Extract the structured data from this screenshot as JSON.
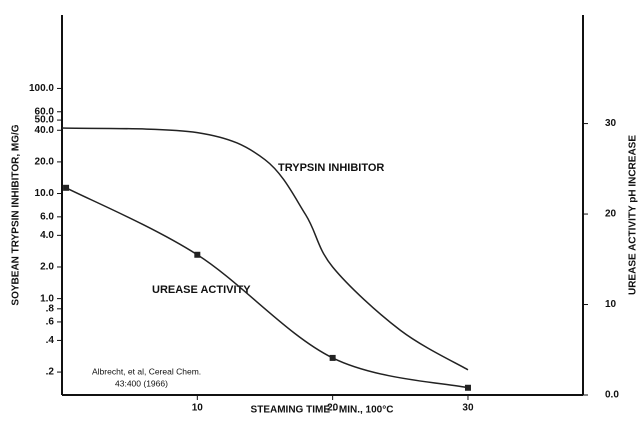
{
  "chart_data": {
    "type": "line",
    "left_axis_label": "SOYBEAN TRYPSIN INHIBITOR, MG/G",
    "right_axis_label": "UREASE ACTIVITY pH INCREASE",
    "x_axis_label": "STEAMING TIME - MIN., 100°C",
    "annotations": [
      "TRYPSIN INHIBITOR",
      "UREASE ACTIVITY",
      "Albrecht, et al, Cereal Chem.",
      "43:400 (1966)"
    ],
    "xlim": [
      0,
      38.5
    ],
    "xticks": [
      10,
      20,
      30
    ],
    "ylog": true,
    "ylim": [
      0.121,
      500
    ],
    "yticks": [
      {
        "value": 100,
        "label": "100.0"
      },
      {
        "value": 60,
        "label": "60.0"
      },
      {
        "value": 50,
        "label": "50.0"
      },
      {
        "value": 40,
        "label": "40.0"
      },
      {
        "value": 20,
        "label": "20.0"
      },
      {
        "value": 10,
        "label": "10.0"
      },
      {
        "value": 6,
        "label": "6.0"
      },
      {
        "value": 4,
        "label": "4.0"
      },
      {
        "value": 2,
        "label": "2.0"
      },
      {
        "value": 1,
        "label": "1.0"
      },
      {
        "value": 0.8,
        "label": ".8"
      },
      {
        "value": 0.6,
        "label": ".6"
      },
      {
        "value": 0.4,
        "label": ".4"
      },
      {
        "value": 0.2,
        "label": ".2"
      }
    ],
    "y2lim": [
      0,
      42
    ],
    "y2ticks": [
      {
        "value": 0,
        "label": "0.0"
      },
      10,
      20,
      30
    ],
    "series": [
      {
        "name": "TRYPSIN INHIBITOR",
        "color": "#222222",
        "x": [
          0,
          10,
          15,
          18,
          20,
          25,
          30
        ],
        "values": [
          42,
          38,
          21,
          6.3,
          2.0,
          0.5,
          0.21
        ]
      },
      {
        "name": "UREASE ACTIVITY",
        "color": "#222222",
        "axis": "y2",
        "marker": "square",
        "x": [
          0.3,
          10,
          20,
          30
        ],
        "values": [
          22.9,
          15.5,
          4.1,
          0.8
        ]
      }
    ]
  }
}
